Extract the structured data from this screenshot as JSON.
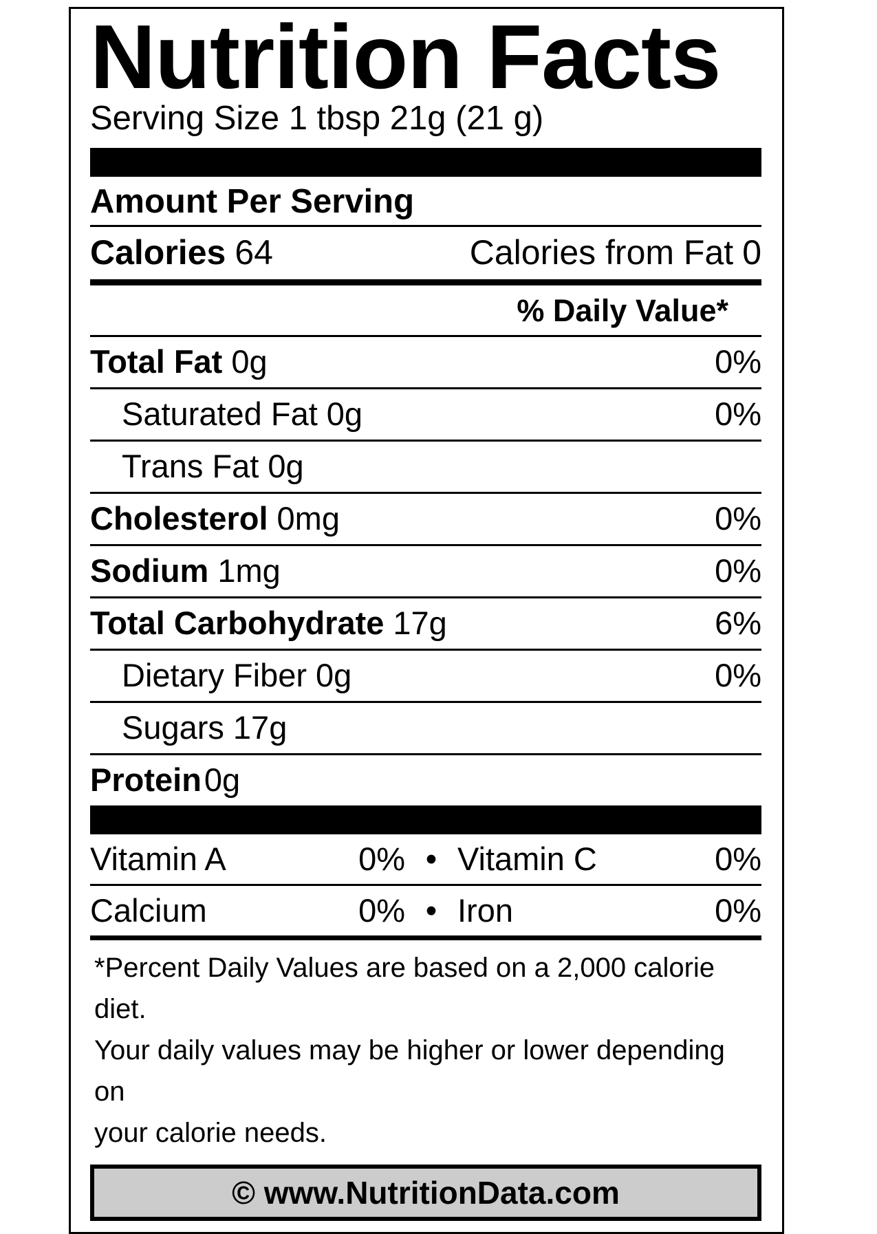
{
  "label": {
    "title": "Nutrition Facts",
    "serving_size": "Serving Size 1 tbsp 21g (21 g)",
    "amount_per_serving": "Amount Per Serving",
    "calories_label": "Calories",
    "calories_value": "64",
    "calories_from_fat_label": "Calories from Fat",
    "calories_from_fat_value": "0",
    "daily_value_header": "% Daily Value*",
    "nutrients": [
      {
        "name": "Total Fat",
        "amount": "0g",
        "daily_value": "0%"
      },
      {
        "name": "Saturated Fat",
        "amount": "0g",
        "daily_value": "0%"
      },
      {
        "name": "Trans Fat",
        "amount": "0g",
        "daily_value": ""
      },
      {
        "name": "Cholesterol",
        "amount": "0mg",
        "daily_value": "0%"
      },
      {
        "name": "Sodium",
        "amount": "1mg",
        "daily_value": "0%"
      },
      {
        "name": "Total Carbohydrate",
        "amount": "17g",
        "daily_value": "6%"
      },
      {
        "name": "Dietary Fiber",
        "amount": "0g",
        "daily_value": "0%"
      },
      {
        "name": "Sugars",
        "amount": "17g",
        "daily_value": ""
      },
      {
        "name": "Protein",
        "amount": "0g",
        "daily_value": ""
      }
    ],
    "micronutrients": {
      "separator": "•",
      "rows": [
        {
          "left_name": "Vitamin A",
          "left_value": "0%",
          "right_name": "Vitamin C",
          "right_value": "0%"
        },
        {
          "left_name": "Calcium",
          "left_value": "0%",
          "right_name": "Iron",
          "right_value": "0%"
        }
      ]
    },
    "footnote_lines": [
      "*Percent Daily Values are based on a 2,000 calorie diet.",
      "Your daily values may be higher or lower depending on",
      "your calorie needs."
    ],
    "footer_text": "© www.NutritionData.com",
    "colors": {
      "ink": "#000000",
      "footer_background": "#cccccc"
    }
  }
}
